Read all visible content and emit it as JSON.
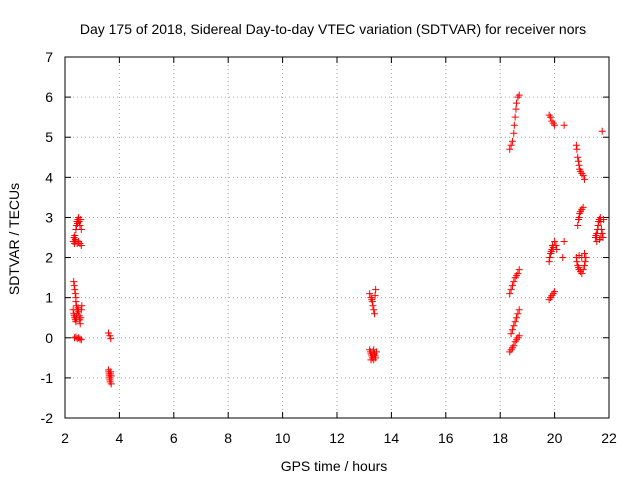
{
  "chart_data": {
    "type": "scatter",
    "title": "Day 175 of 2018, Sidereal Day-to-day VTEC variation (SDTVAR) for receiver nors",
    "xlabel": "GPS time / hours",
    "ylabel": "SDTVAR / TECUs",
    "xlim": [
      2,
      22
    ],
    "ylim": [
      -2,
      7
    ],
    "xticks": [
      2,
      4,
      6,
      8,
      10,
      12,
      14,
      16,
      18,
      20,
      22
    ],
    "yticks": [
      -2,
      -1,
      0,
      1,
      2,
      3,
      4,
      5,
      6,
      7
    ],
    "xtick_labels": [
      "2",
      "4",
      "6",
      "8",
      "10",
      "12",
      "14",
      "16",
      "18",
      "20",
      "22"
    ],
    "ytick_labels": [
      "-2",
      "-1",
      "0",
      "1",
      "2",
      "3",
      "4",
      "5",
      "6",
      "7"
    ],
    "grid": true,
    "marker": "+",
    "marker_color": "#ff0000",
    "axis_color": "#000000",
    "grid_color": "#a0a0a0",
    "series": [
      {
        "name": "SDTVAR",
        "points": [
          [
            2.3,
            2.4
          ],
          [
            2.33,
            2.5
          ],
          [
            2.36,
            2.55
          ],
          [
            2.38,
            2.45
          ],
          [
            2.4,
            2.7
          ],
          [
            2.42,
            2.8
          ],
          [
            2.44,
            2.9
          ],
          [
            2.46,
            2.85
          ],
          [
            2.48,
            2.95
          ],
          [
            2.5,
            3.0
          ],
          [
            2.52,
            2.9
          ],
          [
            2.55,
            2.8
          ],
          [
            2.58,
            2.95
          ],
          [
            2.6,
            2.7
          ],
          [
            2.35,
            2.35
          ],
          [
            2.4,
            2.4
          ],
          [
            2.45,
            2.35
          ],
          [
            2.5,
            2.4
          ],
          [
            2.55,
            2.35
          ],
          [
            2.6,
            2.3
          ],
          [
            2.32,
            1.4
          ],
          [
            2.34,
            1.3
          ],
          [
            2.36,
            1.2
          ],
          [
            2.38,
            1.1
          ],
          [
            2.4,
            1.0
          ],
          [
            2.4,
            0.9
          ],
          [
            2.42,
            0.8
          ],
          [
            2.3,
            0.7
          ],
          [
            2.32,
            0.6
          ],
          [
            2.34,
            0.55
          ],
          [
            2.36,
            0.5
          ],
          [
            2.38,
            0.45
          ],
          [
            2.4,
            0.4
          ],
          [
            2.42,
            0.5
          ],
          [
            2.44,
            0.6
          ],
          [
            2.46,
            0.7
          ],
          [
            2.48,
            0.75
          ],
          [
            2.5,
            0.65
          ],
          [
            2.52,
            0.55
          ],
          [
            2.54,
            0.45
          ],
          [
            2.56,
            0.35
          ],
          [
            2.58,
            0.5
          ],
          [
            2.6,
            0.7
          ],
          [
            2.62,
            0.8
          ],
          [
            2.35,
            0.0
          ],
          [
            2.4,
            0.02
          ],
          [
            2.45,
            -0.02
          ],
          [
            2.5,
            0.0
          ],
          [
            2.55,
            -0.03
          ],
          [
            2.6,
            -0.05
          ],
          [
            3.6,
            0.12
          ],
          [
            3.65,
            0.05
          ],
          [
            3.68,
            -0.02
          ],
          [
            3.6,
            -0.8
          ],
          [
            3.61,
            -0.85
          ],
          [
            3.62,
            -0.9
          ],
          [
            3.63,
            -0.95
          ],
          [
            3.64,
            -1.0
          ],
          [
            3.65,
            -1.05
          ],
          [
            3.66,
            -1.1
          ],
          [
            3.67,
            -0.9
          ],
          [
            3.68,
            -0.85
          ],
          [
            3.7,
            -0.95
          ],
          [
            3.7,
            -1.15
          ],
          [
            13.2,
            1.1
          ],
          [
            13.25,
            1.0
          ],
          [
            13.28,
            0.95
          ],
          [
            13.3,
            0.9
          ],
          [
            13.32,
            0.8
          ],
          [
            13.35,
            0.7
          ],
          [
            13.38,
            0.6
          ],
          [
            13.4,
            1.05
          ],
          [
            13.42,
            1.2
          ],
          [
            13.2,
            -0.3
          ],
          [
            13.23,
            -0.35
          ],
          [
            13.25,
            -0.4
          ],
          [
            13.28,
            -0.45
          ],
          [
            13.3,
            -0.5
          ],
          [
            13.33,
            -0.35
          ],
          [
            13.35,
            -0.3
          ],
          [
            13.38,
            -0.4
          ],
          [
            13.4,
            -0.45
          ],
          [
            13.42,
            -0.5
          ],
          [
            13.45,
            -0.35
          ],
          [
            13.25,
            -0.55
          ],
          [
            13.35,
            -0.55
          ],
          [
            18.35,
            4.7
          ],
          [
            18.4,
            4.8
          ],
          [
            18.45,
            4.9
          ],
          [
            18.5,
            5.1
          ],
          [
            18.52,
            5.3
          ],
          [
            18.55,
            5.5
          ],
          [
            18.58,
            5.7
          ],
          [
            18.6,
            5.85
          ],
          [
            18.65,
            6.0
          ],
          [
            18.7,
            6.05
          ],
          [
            18.35,
            1.1
          ],
          [
            18.4,
            1.2
          ],
          [
            18.45,
            1.3
          ],
          [
            18.5,
            1.4
          ],
          [
            18.55,
            1.5
          ],
          [
            18.6,
            1.55
          ],
          [
            18.65,
            1.6
          ],
          [
            18.7,
            1.7
          ],
          [
            18.4,
            0.1
          ],
          [
            18.45,
            0.2
          ],
          [
            18.5,
            0.3
          ],
          [
            18.55,
            0.4
          ],
          [
            18.6,
            0.5
          ],
          [
            18.65,
            0.6
          ],
          [
            18.7,
            0.7
          ],
          [
            18.35,
            -0.35
          ],
          [
            18.4,
            -0.3
          ],
          [
            18.45,
            -0.25
          ],
          [
            18.5,
            -0.2
          ],
          [
            18.55,
            -0.1
          ],
          [
            18.6,
            -0.05
          ],
          [
            18.65,
            0.0
          ],
          [
            18.7,
            0.05
          ],
          [
            19.8,
            5.55
          ],
          [
            19.85,
            5.5
          ],
          [
            19.9,
            5.4
          ],
          [
            19.95,
            5.35
          ],
          [
            20.0,
            5.3
          ],
          [
            20.35,
            5.3
          ],
          [
            19.8,
            1.9
          ],
          [
            19.82,
            2.0
          ],
          [
            19.85,
            2.1
          ],
          [
            19.88,
            2.15
          ],
          [
            19.9,
            2.2
          ],
          [
            19.92,
            2.3
          ],
          [
            19.95,
            2.25
          ],
          [
            20.0,
            2.4
          ],
          [
            20.05,
            2.3
          ],
          [
            20.08,
            2.2
          ],
          [
            20.35,
            2.4
          ],
          [
            20.3,
            2.0
          ],
          [
            19.8,
            0.95
          ],
          [
            19.85,
            1.0
          ],
          [
            19.9,
            1.05
          ],
          [
            19.95,
            1.1
          ],
          [
            20.0,
            1.15
          ],
          [
            20.8,
            4.8
          ],
          [
            20.82,
            4.7
          ],
          [
            20.85,
            4.5
          ],
          [
            20.88,
            4.4
          ],
          [
            20.9,
            4.3
          ],
          [
            20.92,
            4.2
          ],
          [
            20.95,
            4.15
          ],
          [
            21.0,
            4.1
          ],
          [
            21.05,
            4.05
          ],
          [
            21.1,
            3.95
          ],
          [
            20.85,
            2.8
          ],
          [
            20.88,
            2.95
          ],
          [
            20.9,
            3.0
          ],
          [
            20.92,
            3.1
          ],
          [
            20.95,
            3.15
          ],
          [
            21.0,
            3.2
          ],
          [
            21.05,
            3.25
          ],
          [
            20.8,
            2.0
          ],
          [
            20.82,
            1.9
          ],
          [
            20.85,
            1.8
          ],
          [
            20.88,
            1.75
          ],
          [
            20.9,
            1.7
          ],
          [
            20.95,
            1.65
          ],
          [
            21.0,
            1.6
          ],
          [
            21.05,
            1.7
          ],
          [
            21.1,
            1.8
          ],
          [
            21.12,
            1.9
          ],
          [
            21.15,
            2.0
          ],
          [
            20.9,
            2.05
          ],
          [
            21.0,
            2.0
          ],
          [
            21.1,
            2.1
          ],
          [
            21.5,
            2.5
          ],
          [
            21.52,
            2.55
          ],
          [
            21.55,
            2.6
          ],
          [
            21.58,
            2.7
          ],
          [
            21.6,
            2.8
          ],
          [
            21.62,
            2.9
          ],
          [
            21.65,
            2.95
          ],
          [
            21.68,
            3.0
          ],
          [
            21.7,
            2.9
          ],
          [
            21.72,
            2.7
          ],
          [
            21.75,
            2.6
          ],
          [
            21.78,
            2.5
          ],
          [
            21.8,
            2.95
          ],
          [
            21.55,
            2.4
          ],
          [
            21.65,
            2.45
          ],
          [
            21.7,
            2.5
          ],
          [
            21.75,
            5.15
          ]
        ]
      }
    ]
  }
}
